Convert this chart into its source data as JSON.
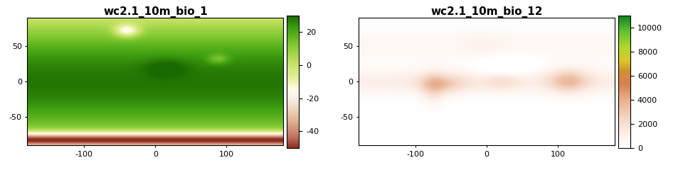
{
  "panel1": {
    "title": "wc2.1_10m_bio_1",
    "vmin": -50,
    "vmax": 30,
    "cbar_ticks": [
      -40,
      -20,
      0,
      20
    ],
    "cbar_labels": [
      "-40",
      "-20",
      "0",
      "20"
    ]
  },
  "panel2": {
    "title": "wc2.1_10m_bio_12",
    "vmin": 0,
    "vmax": 11000,
    "cbar_ticks": [
      0,
      2000,
      4000,
      6000,
      8000,
      10000
    ],
    "cbar_labels": [
      "0",
      "2000",
      "4000",
      "6000",
      "8000",
      "10000"
    ]
  },
  "xticks": [
    -100,
    0,
    100
  ],
  "yticks": [
    50,
    0,
    -50
  ],
  "background_color": "#ffffff",
  "figsize": [
    9.6,
    2.4
  ],
  "dpi": 100,
  "title_fontsize": 11,
  "tick_fontsize": 8,
  "cbar_fontsize": 8
}
